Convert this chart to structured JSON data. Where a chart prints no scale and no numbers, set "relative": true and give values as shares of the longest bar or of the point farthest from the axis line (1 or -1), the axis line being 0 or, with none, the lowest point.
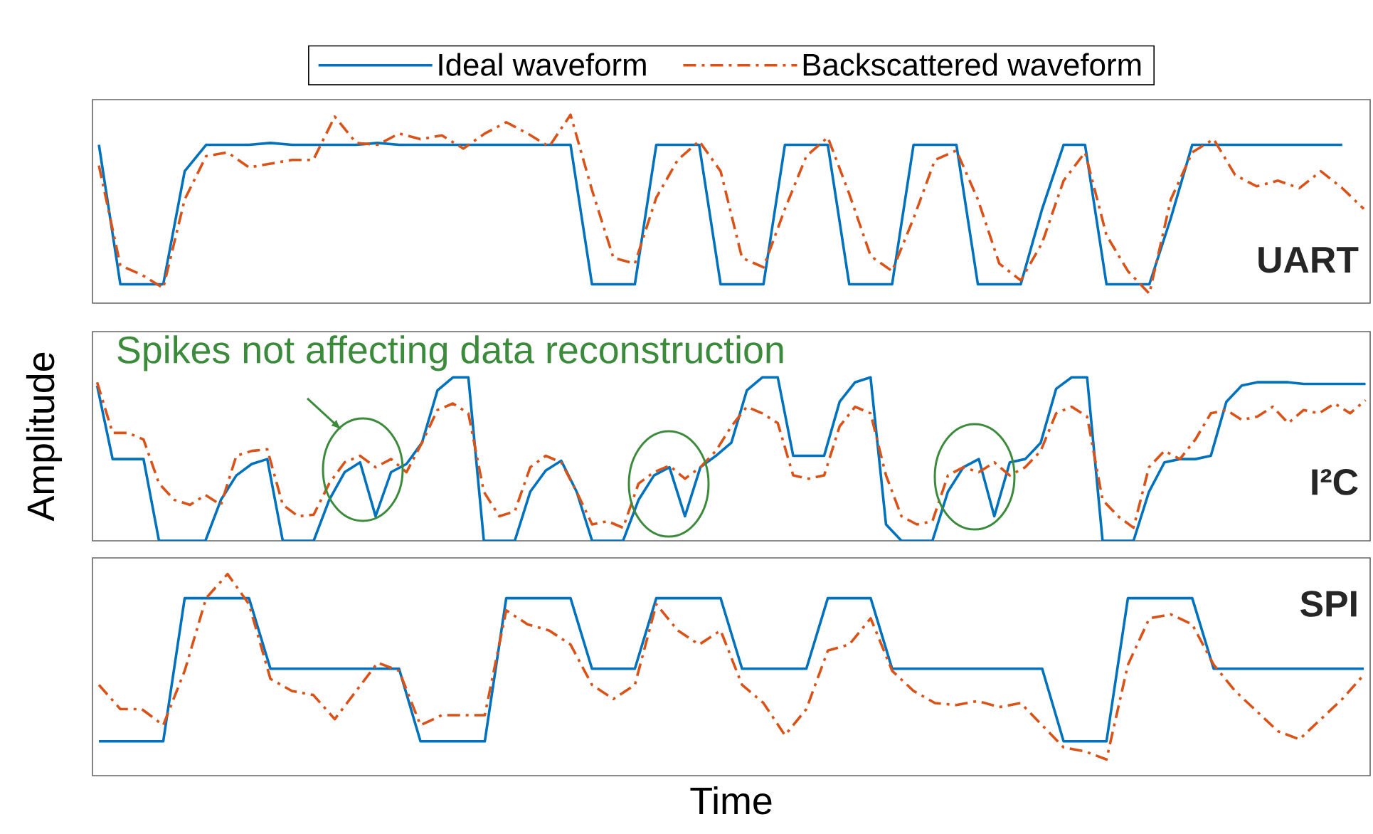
{
  "chart_data": [
    {
      "type": "line",
      "title": "UART",
      "relative": true,
      "tick_labels": false,
      "legend": "top",
      "categories": [
        null,
        null,
        null,
        null,
        null,
        null,
        null,
        null,
        null,
        null,
        null,
        null,
        null,
        null,
        null,
        null,
        null,
        null,
        null,
        null,
        null,
        null,
        null,
        null,
        null,
        null,
        null,
        null,
        null,
        null,
        null,
        null,
        null,
        null,
        null,
        null,
        null,
        null,
        null,
        null,
        null,
        null,
        null,
        null,
        null,
        null,
        null,
        null,
        null,
        null,
        null,
        null,
        null,
        null,
        null,
        null,
        null,
        null,
        null,
        null
      ],
      "series": [
        {
          "name": "Ideal waveform",
          "color": "#0072bd",
          "line_style": "solid",
          "values": [
            0.84,
            0.1,
            0.1,
            0.1,
            0.7,
            0.84,
            0.84,
            0.84,
            0.85,
            0.84,
            0.84,
            0.84,
            0.84,
            0.85,
            0.84,
            0.84,
            0.84,
            0.84,
            0.84,
            0.84,
            0.84,
            0.84,
            0.84,
            0.1,
            0.1,
            0.1,
            0.84,
            0.84,
            0.84,
            0.1,
            0.1,
            0.1,
            0.84,
            0.84,
            0.84,
            0.1,
            0.1,
            0.1,
            0.84,
            0.84,
            0.84,
            0.1,
            0.1,
            0.1,
            0.5,
            0.84,
            0.84,
            0.1,
            0.1,
            0.1,
            0.45,
            0.84,
            0.84,
            0.84,
            0.84,
            0.84,
            0.84,
            0.84,
            0.84,
            null
          ]
        },
        {
          "name": "Backscattered waveform",
          "color": "#d95319",
          "line_style": "dashdot",
          "values": [
            0.73,
            0.2,
            0.15,
            0.08,
            0.55,
            0.78,
            0.8,
            0.72,
            0.74,
            0.76,
            0.76,
            0.99,
            0.85,
            0.84,
            0.9,
            0.87,
            0.89,
            0.82,
            0.9,
            0.96,
            0.9,
            0.83,
            1.0,
            0.6,
            0.24,
            0.21,
            0.56,
            0.76,
            0.86,
            0.7,
            0.24,
            0.19,
            0.5,
            0.78,
            0.88,
            0.58,
            0.25,
            0.17,
            0.45,
            0.76,
            0.81,
            0.55,
            0.21,
            0.12,
            0.32,
            0.65,
            0.8,
            0.36,
            0.17,
            0.05,
            0.55,
            0.8,
            0.87,
            0.68,
            0.62,
            0.65,
            0.61,
            0.7,
            0.61,
            0.5
          ]
        }
      ]
    },
    {
      "type": "line",
      "title": "I²C",
      "ylabel": "Amplitude",
      "relative": true,
      "tick_labels": false,
      "annotations": [
        "Spikes not affecting data reconstruction"
      ],
      "categories": [
        null,
        null,
        null,
        null,
        null,
        null,
        null,
        null,
        null,
        null,
        null,
        null,
        null,
        null,
        null,
        null,
        null,
        null,
        null,
        null,
        null,
        null,
        null,
        null,
        null,
        null,
        null,
        null,
        null,
        null,
        null,
        null,
        null,
        null,
        null,
        null,
        null,
        null,
        null,
        null,
        null,
        null,
        null,
        null,
        null,
        null,
        null,
        null,
        null,
        null,
        null,
        null,
        null,
        null,
        null,
        null,
        null,
        null,
        null,
        null,
        null,
        null,
        null,
        null,
        null,
        null,
        null,
        null,
        null,
        null,
        null,
        null,
        null,
        null,
        null,
        null,
        null,
        null,
        null,
        null,
        null,
        null,
        null
      ],
      "series": [
        {
          "color": "#0072bd",
          "line_style": "solid",
          "values": [
            0.95,
            0.5,
            0.5,
            0.5,
            0.0,
            0.0,
            0.0,
            0.0,
            0.25,
            0.4,
            0.47,
            0.5,
            0.0,
            0.0,
            0.0,
            0.25,
            0.42,
            0.48,
            0.15,
            0.42,
            0.47,
            0.6,
            0.92,
            1.0,
            1.0,
            0.0,
            0.0,
            0.0,
            0.3,
            0.43,
            0.49,
            0.3,
            0.0,
            0.0,
            0.0,
            0.25,
            0.4,
            0.45,
            0.15,
            0.45,
            0.52,
            0.6,
            0.92,
            1.0,
            1.0,
            0.52,
            0.52,
            0.52,
            0.85,
            0.97,
            1.0,
            0.1,
            0.0,
            0.0,
            0.0,
            0.3,
            0.45,
            0.5,
            0.15,
            0.48,
            0.5,
            0.6,
            0.93,
            1.0,
            1.0,
            0.0,
            0.0,
            0.0,
            0.3,
            0.48,
            0.5,
            0.5,
            0.52,
            0.85,
            0.95,
            0.97,
            0.97,
            0.97,
            0.96,
            0.96,
            0.96,
            0.96,
            0.96
          ]
        },
        {
          "color": "#d95319",
          "line_style": "dashdot",
          "values": [
            0.97,
            0.66,
            0.66,
            0.62,
            0.35,
            0.25,
            0.22,
            0.28,
            0.22,
            0.52,
            0.55,
            0.56,
            0.22,
            0.15,
            0.16,
            0.35,
            0.48,
            0.52,
            0.45,
            0.5,
            0.42,
            0.6,
            0.8,
            0.84,
            0.78,
            0.3,
            0.15,
            0.18,
            0.45,
            0.52,
            0.48,
            0.3,
            0.1,
            0.12,
            0.08,
            0.35,
            0.42,
            0.46,
            0.38,
            0.45,
            0.55,
            0.7,
            0.82,
            0.78,
            0.72,
            0.4,
            0.38,
            0.4,
            0.7,
            0.82,
            0.78,
            0.4,
            0.15,
            0.1,
            0.12,
            0.4,
            0.45,
            0.42,
            0.48,
            0.4,
            0.45,
            0.55,
            0.78,
            0.82,
            0.76,
            0.25,
            0.15,
            0.08,
            0.45,
            0.55,
            0.5,
            0.62,
            0.78,
            0.8,
            0.74,
            0.76,
            0.82,
            0.72,
            0.8,
            0.78,
            0.84,
            0.78,
            0.86
          ]
        }
      ]
    },
    {
      "type": "line",
      "title": "SPI",
      "xlabel": "Time",
      "relative": true,
      "tick_labels": false,
      "categories": [
        null,
        null,
        null,
        null,
        null,
        null,
        null,
        null,
        null,
        null,
        null,
        null,
        null,
        null,
        null,
        null,
        null,
        null,
        null,
        null,
        null,
        null,
        null,
        null,
        null,
        null,
        null,
        null,
        null,
        null,
        null,
        null,
        null,
        null,
        null,
        null,
        null,
        null,
        null,
        null,
        null,
        null,
        null,
        null,
        null,
        null,
        null,
        null,
        null,
        null,
        null,
        null,
        null,
        null,
        null,
        null,
        null,
        null,
        null,
        null
      ],
      "series": [
        {
          "color": "#0072bd",
          "line_style": "solid",
          "values": [
            0.17,
            0.17,
            0.17,
            0.17,
            0.88,
            0.88,
            0.88,
            0.88,
            0.53,
            0.53,
            0.53,
            0.53,
            0.53,
            0.53,
            0.53,
            0.17,
            0.17,
            0.17,
            0.17,
            0.88,
            0.88,
            0.88,
            0.88,
            0.53,
            0.53,
            0.53,
            0.88,
            0.88,
            0.88,
            0.88,
            0.53,
            0.53,
            0.53,
            0.53,
            0.88,
            0.88,
            0.88,
            0.53,
            0.53,
            0.53,
            0.53,
            0.53,
            0.53,
            0.53,
            0.53,
            0.17,
            0.17,
            0.17,
            0.88,
            0.88,
            0.88,
            0.88,
            0.53,
            0.53,
            0.53,
            0.53,
            0.53,
            0.53,
            0.53,
            0.53
          ]
        },
        {
          "color": "#d95319",
          "line_style": "dashdot",
          "values": [
            0.45,
            0.33,
            0.33,
            0.25,
            0.52,
            0.88,
            1.0,
            0.85,
            0.48,
            0.42,
            0.4,
            0.28,
            0.42,
            0.56,
            0.52,
            0.25,
            0.3,
            0.3,
            0.3,
            0.82,
            0.75,
            0.72,
            0.65,
            0.45,
            0.38,
            0.45,
            0.85,
            0.72,
            0.65,
            0.72,
            0.45,
            0.36,
            0.2,
            0.33,
            0.62,
            0.65,
            0.78,
            0.52,
            0.42,
            0.36,
            0.35,
            0.37,
            0.34,
            0.36,
            0.25,
            0.14,
            0.12,
            0.08,
            0.55,
            0.78,
            0.8,
            0.75,
            0.55,
            0.42,
            0.32,
            0.22,
            0.18,
            0.28,
            0.38,
            0.5
          ]
        }
      ]
    }
  ]
}
